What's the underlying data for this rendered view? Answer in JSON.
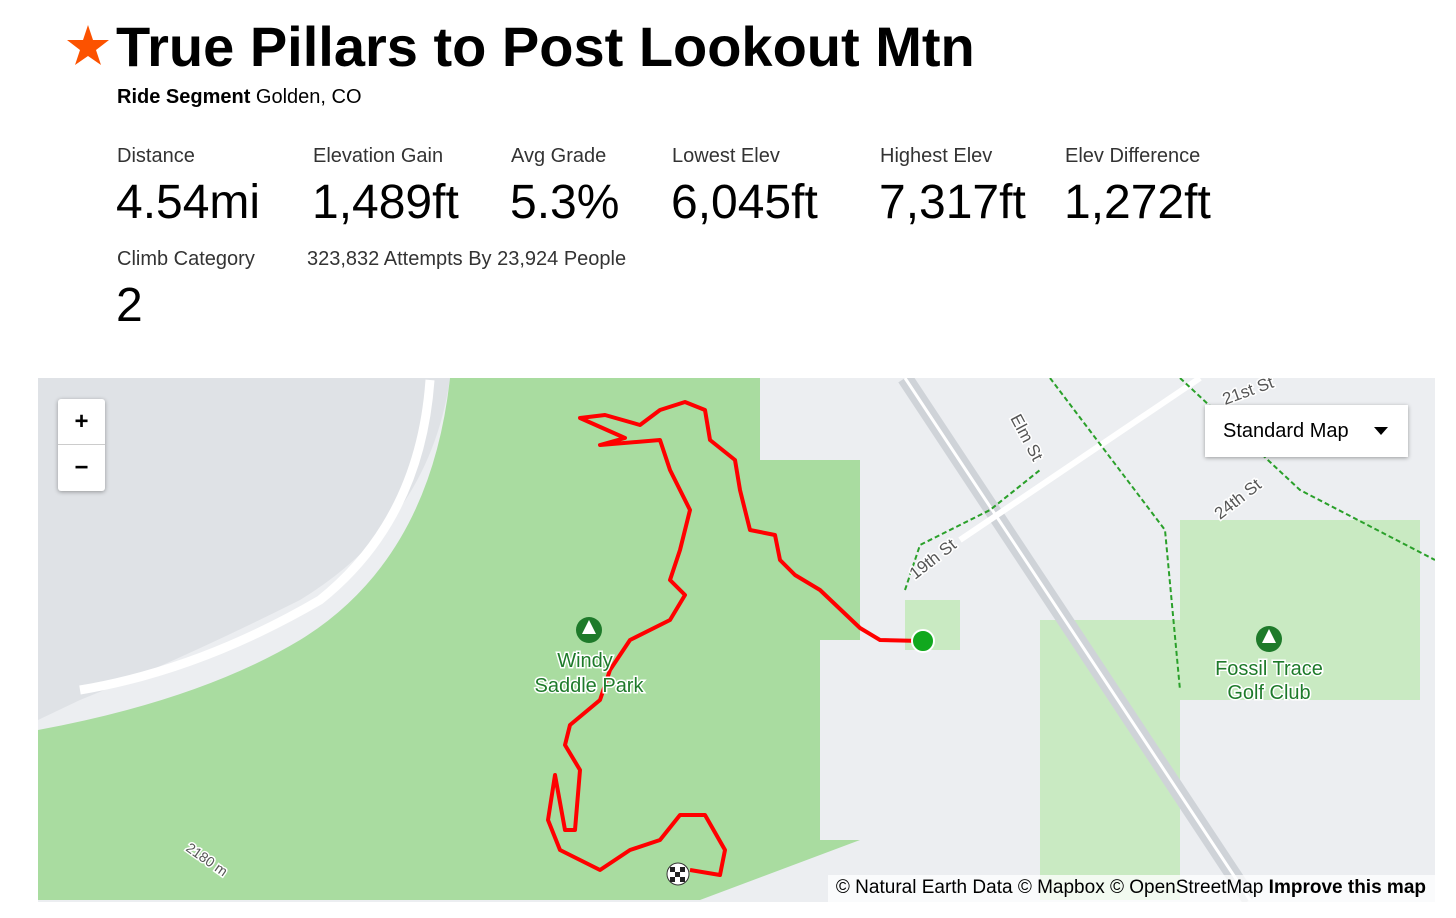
{
  "header": {
    "title": "True Pillars to Post Lookout Mtn",
    "segment_type": "Ride Segment",
    "location": "Golden, CO"
  },
  "stats": [
    {
      "label": "Distance",
      "value": "4.54mi"
    },
    {
      "label": "Elevation Gain",
      "value": "1,489ft"
    },
    {
      "label": "Avg Grade",
      "value": "5.3%"
    },
    {
      "label": "Lowest Elev",
      "value": "6,045ft"
    },
    {
      "label": "Highest Elev",
      "value": "7,317ft"
    },
    {
      "label": "Elev Difference",
      "value": "1,272ft"
    }
  ],
  "climb": {
    "label": "Climb Category",
    "value": "2"
  },
  "attempts": "323,832 Attempts By 23,924 People",
  "map": {
    "zoom_in": "+",
    "zoom_out": "−",
    "layer_button": "Standard Map",
    "labels": {
      "elm": "Elm St",
      "nineteenth": "19th St",
      "twentyfourth": "24th St",
      "twentyfirst": "21st St",
      "park_line1": "Windy",
      "park_line2": "Saddle Park",
      "golf_line1": "Fossil Trace",
      "golf_line2": "Golf Club",
      "contour": "2180 m"
    },
    "attribution": "© Natural Earth Data © Mapbox © OpenStreetMap",
    "improve": "Improve this map"
  }
}
